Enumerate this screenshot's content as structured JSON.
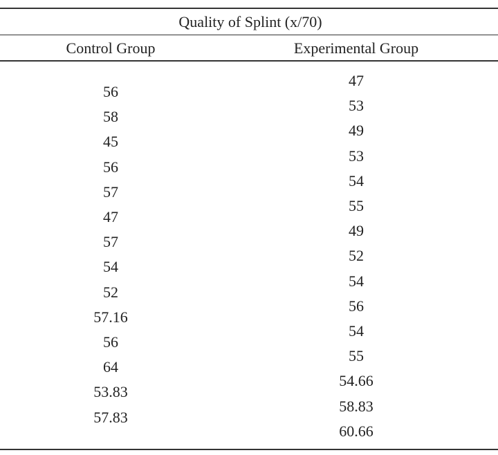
{
  "table": {
    "title": "Quality of Splint (x/70)",
    "columns": [
      {
        "header": "Control Group",
        "values": [
          56,
          58,
          45,
          56,
          57,
          47,
          57,
          54,
          52,
          57.16,
          56,
          64,
          53.83,
          57.83
        ]
      },
      {
        "header": "Experimental Group",
        "values": [
          47,
          53,
          49,
          53,
          54,
          55,
          49,
          52,
          54,
          56,
          54,
          55,
          54.66,
          58.83,
          60.66
        ]
      }
    ]
  }
}
